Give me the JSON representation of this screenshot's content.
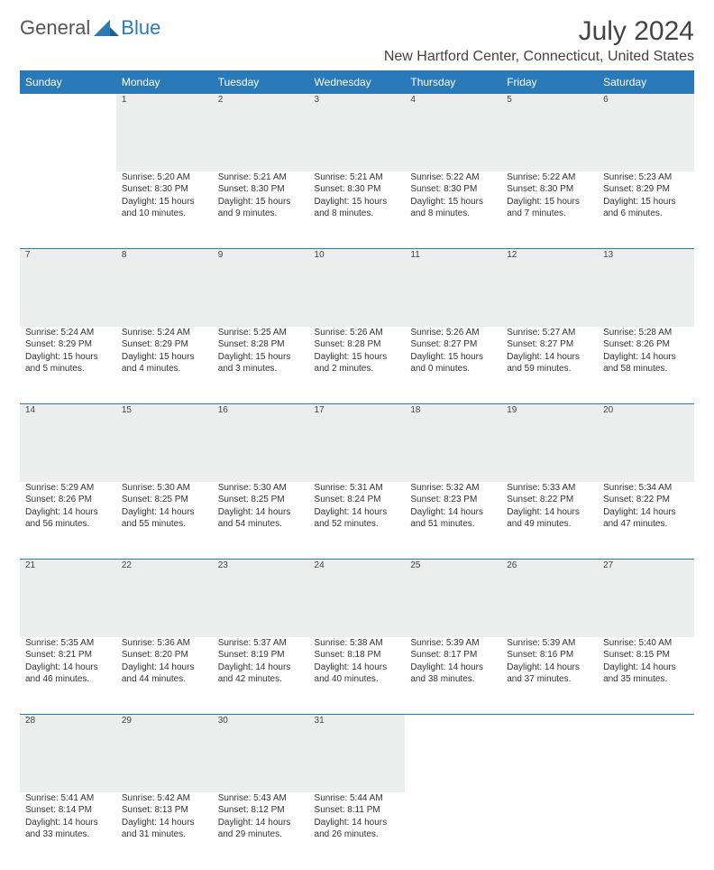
{
  "brand": {
    "part1": "General",
    "part2": "Blue"
  },
  "colors": {
    "accent": "#2a7ab9",
    "day_bg": "#eceded",
    "text": "#333333",
    "header_text": "#ffffff",
    "background": "#ffffff"
  },
  "title": "July 2024",
  "location": "New Hartford Center, Connecticut, United States",
  "weekdays": [
    "Sunday",
    "Monday",
    "Tuesday",
    "Wednesday",
    "Thursday",
    "Friday",
    "Saturday"
  ],
  "weeks": [
    [
      null,
      {
        "n": "1",
        "sr": "5:20 AM",
        "ss": "8:30 PM",
        "dl": "15 hours and 10 minutes."
      },
      {
        "n": "2",
        "sr": "5:21 AM",
        "ss": "8:30 PM",
        "dl": "15 hours and 9 minutes."
      },
      {
        "n": "3",
        "sr": "5:21 AM",
        "ss": "8:30 PM",
        "dl": "15 hours and 8 minutes."
      },
      {
        "n": "4",
        "sr": "5:22 AM",
        "ss": "8:30 PM",
        "dl": "15 hours and 8 minutes."
      },
      {
        "n": "5",
        "sr": "5:22 AM",
        "ss": "8:30 PM",
        "dl": "15 hours and 7 minutes."
      },
      {
        "n": "6",
        "sr": "5:23 AM",
        "ss": "8:29 PM",
        "dl": "15 hours and 6 minutes."
      }
    ],
    [
      {
        "n": "7",
        "sr": "5:24 AM",
        "ss": "8:29 PM",
        "dl": "15 hours and 5 minutes."
      },
      {
        "n": "8",
        "sr": "5:24 AM",
        "ss": "8:29 PM",
        "dl": "15 hours and 4 minutes."
      },
      {
        "n": "9",
        "sr": "5:25 AM",
        "ss": "8:28 PM",
        "dl": "15 hours and 3 minutes."
      },
      {
        "n": "10",
        "sr": "5:26 AM",
        "ss": "8:28 PM",
        "dl": "15 hours and 2 minutes."
      },
      {
        "n": "11",
        "sr": "5:26 AM",
        "ss": "8:27 PM",
        "dl": "15 hours and 0 minutes."
      },
      {
        "n": "12",
        "sr": "5:27 AM",
        "ss": "8:27 PM",
        "dl": "14 hours and 59 minutes."
      },
      {
        "n": "13",
        "sr": "5:28 AM",
        "ss": "8:26 PM",
        "dl": "14 hours and 58 minutes."
      }
    ],
    [
      {
        "n": "14",
        "sr": "5:29 AM",
        "ss": "8:26 PM",
        "dl": "14 hours and 56 minutes."
      },
      {
        "n": "15",
        "sr": "5:30 AM",
        "ss": "8:25 PM",
        "dl": "14 hours and 55 minutes."
      },
      {
        "n": "16",
        "sr": "5:30 AM",
        "ss": "8:25 PM",
        "dl": "14 hours and 54 minutes."
      },
      {
        "n": "17",
        "sr": "5:31 AM",
        "ss": "8:24 PM",
        "dl": "14 hours and 52 minutes."
      },
      {
        "n": "18",
        "sr": "5:32 AM",
        "ss": "8:23 PM",
        "dl": "14 hours and 51 minutes."
      },
      {
        "n": "19",
        "sr": "5:33 AM",
        "ss": "8:22 PM",
        "dl": "14 hours and 49 minutes."
      },
      {
        "n": "20",
        "sr": "5:34 AM",
        "ss": "8:22 PM",
        "dl": "14 hours and 47 minutes."
      }
    ],
    [
      {
        "n": "21",
        "sr": "5:35 AM",
        "ss": "8:21 PM",
        "dl": "14 hours and 46 minutes."
      },
      {
        "n": "22",
        "sr": "5:36 AM",
        "ss": "8:20 PM",
        "dl": "14 hours and 44 minutes."
      },
      {
        "n": "23",
        "sr": "5:37 AM",
        "ss": "8:19 PM",
        "dl": "14 hours and 42 minutes."
      },
      {
        "n": "24",
        "sr": "5:38 AM",
        "ss": "8:18 PM",
        "dl": "14 hours and 40 minutes."
      },
      {
        "n": "25",
        "sr": "5:39 AM",
        "ss": "8:17 PM",
        "dl": "14 hours and 38 minutes."
      },
      {
        "n": "26",
        "sr": "5:39 AM",
        "ss": "8:16 PM",
        "dl": "14 hours and 37 minutes."
      },
      {
        "n": "27",
        "sr": "5:40 AM",
        "ss": "8:15 PM",
        "dl": "14 hours and 35 minutes."
      }
    ],
    [
      {
        "n": "28",
        "sr": "5:41 AM",
        "ss": "8:14 PM",
        "dl": "14 hours and 33 minutes."
      },
      {
        "n": "29",
        "sr": "5:42 AM",
        "ss": "8:13 PM",
        "dl": "14 hours and 31 minutes."
      },
      {
        "n": "30",
        "sr": "5:43 AM",
        "ss": "8:12 PM",
        "dl": "14 hours and 29 minutes."
      },
      {
        "n": "31",
        "sr": "5:44 AM",
        "ss": "8:11 PM",
        "dl": "14 hours and 26 minutes."
      },
      null,
      null,
      null
    ]
  ],
  "labels": {
    "sunrise": "Sunrise:",
    "sunset": "Sunset:",
    "daylight": "Daylight:"
  }
}
